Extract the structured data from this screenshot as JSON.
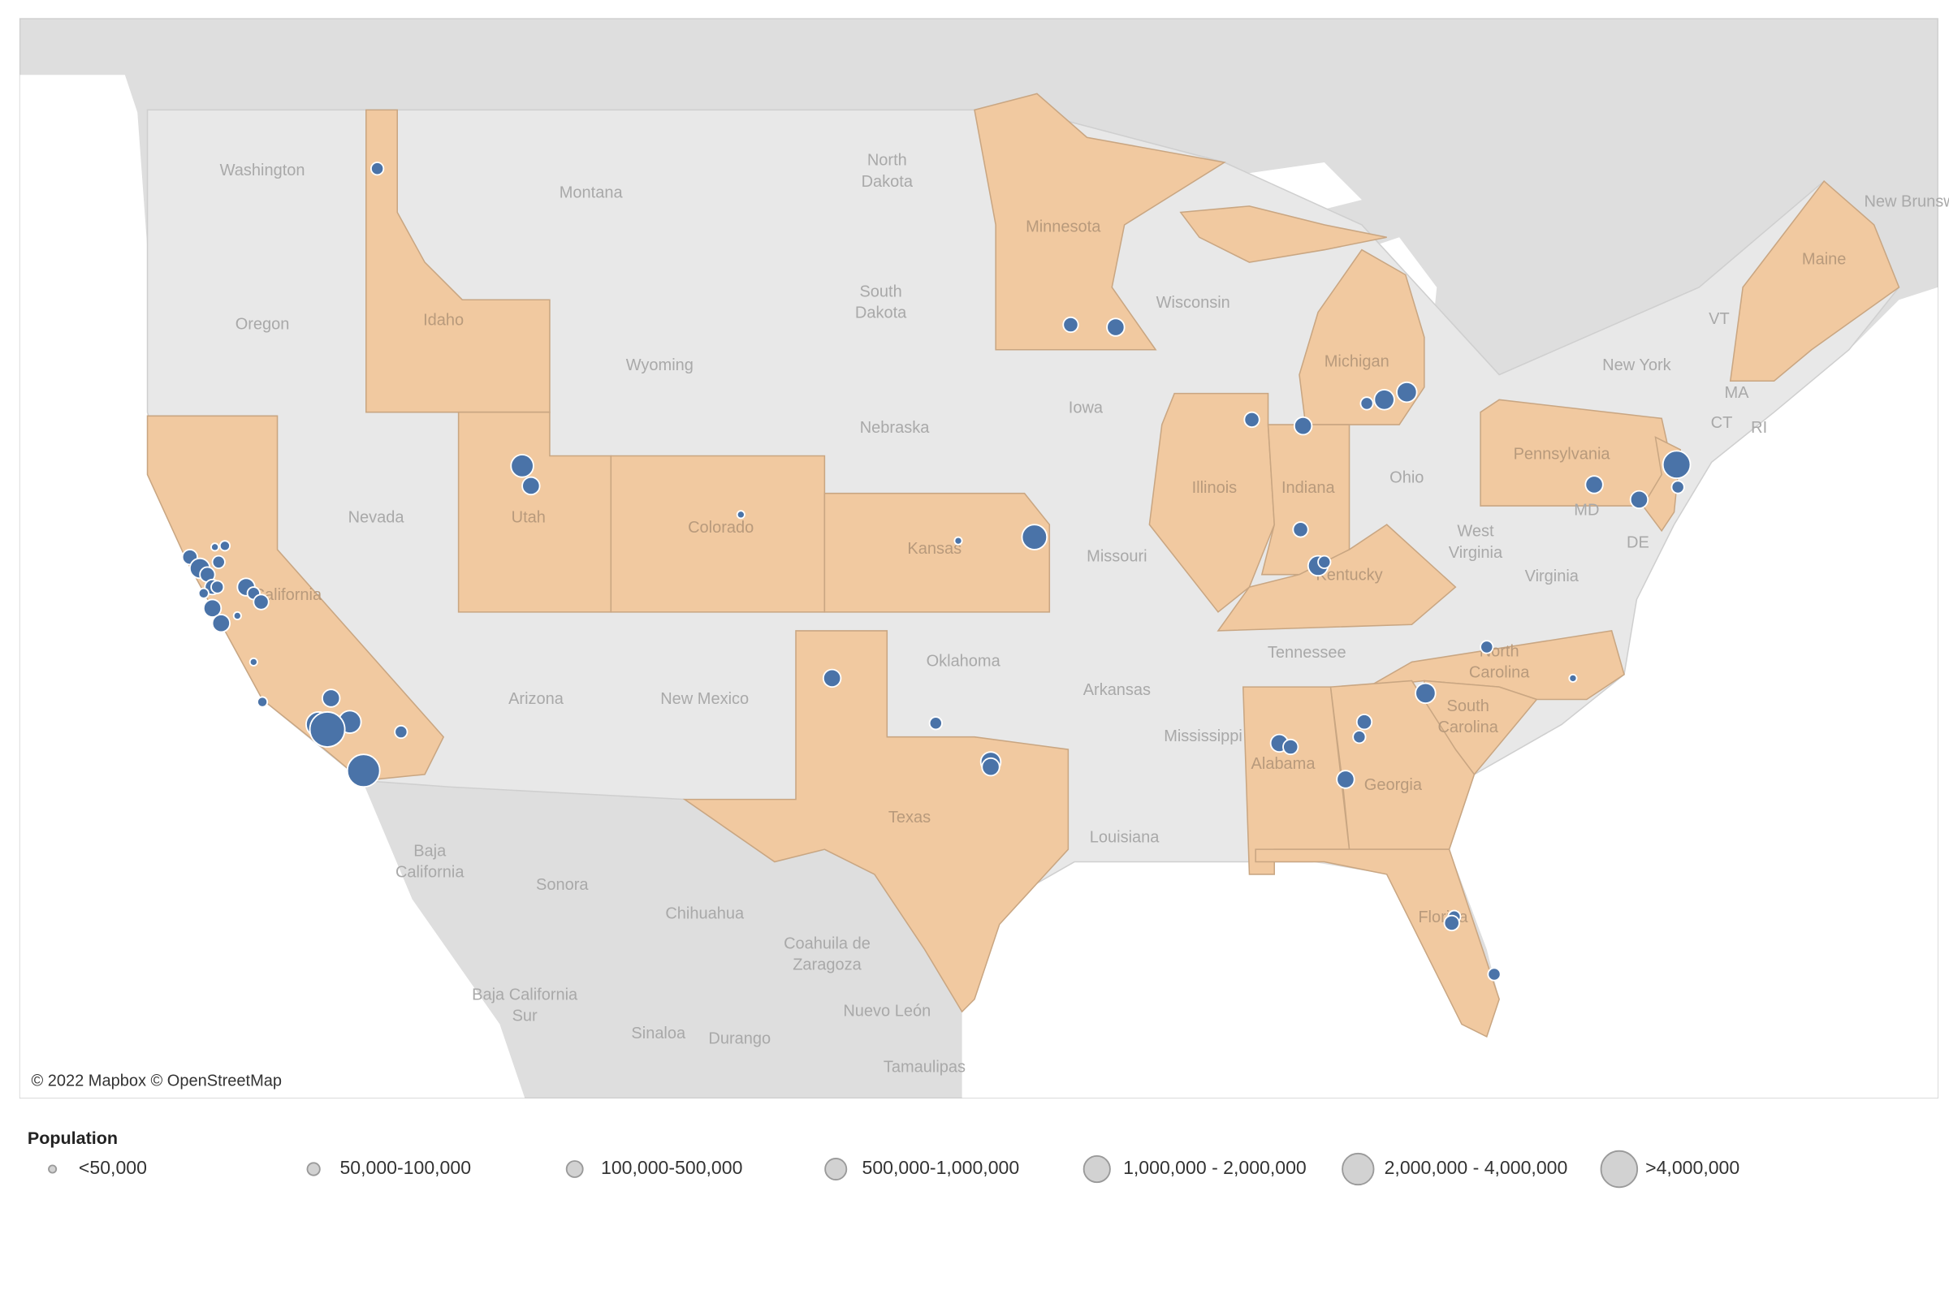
{
  "map": {
    "attribution": "© 2022 Mapbox © OpenStreetMap",
    "labels": [
      "Washington",
      "Montana",
      "North",
      "Dakota",
      "Minnesota",
      "Wisconsin",
      "Michigan",
      "New Brunswi",
      "Maine",
      "VT",
      "New York",
      "MA",
      "CT",
      "RI",
      "Oregon",
      "Idaho",
      "South",
      "Dakota",
      "Wyoming",
      "Iowa",
      "Nebraska",
      "Pennsylvania",
      "Ohio",
      "MD",
      "DE",
      "Nevada",
      "Utah",
      "Colorado",
      "Kansas",
      "Missouri",
      "Illinois",
      "Indiana",
      "Kentucky",
      "West",
      "Virginia",
      "Virginia",
      "California",
      "Tennessee",
      "North",
      "Carolina",
      "Oklahoma",
      "Arizona",
      "New Mexico",
      "Arkansas",
      "South",
      "Carolina",
      "Mississippi",
      "Alabama",
      "Georgia",
      "Texas",
      "Louisiana",
      "Baja",
      "California",
      "Sonora",
      "Chihuahua",
      "Coahuila de",
      "Zaragoza",
      "Nuevo León",
      "Baja California",
      "Sur",
      "Sinaloa",
      "Durango",
      "Tamaulipas",
      "Florida"
    ]
  },
  "legend": {
    "title": "Population",
    "items": [
      "<50,000",
      "50,000-100,000",
      "100,000-500,000",
      "500,000-1,000,000",
      "1,000,000 - 2,000,000",
      "2,000,000 - 4,000,000",
      ">4,000,000"
    ]
  }
}
